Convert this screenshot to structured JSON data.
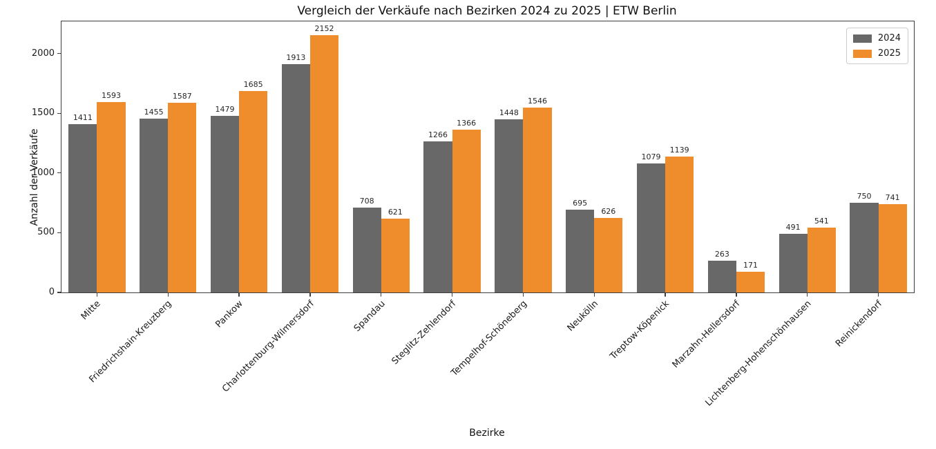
{
  "chart_data": {
    "type": "bar",
    "title": "Vergleich der Verkäufe nach Bezirken 2024 zu 2025 | ETW Berlin",
    "xlabel": "Bezirke",
    "ylabel": "Anzahl der Verkäufe",
    "categories": [
      "Mitte",
      "Friedrichshain-Kreuzberg",
      "Pankow",
      "Charlottenburg-Wilmersdorf",
      "Spandau",
      "Steglitz-Zehlendorf",
      "Tempelhof-Schöneberg",
      "Neukölln",
      "Treptow-Köpenick",
      "Marzahn-Hellersdorf",
      "Lichtenberg-Hohenschönhausen",
      "Reinickendorf"
    ],
    "series": [
      {
        "name": "2024",
        "color": "#686868",
        "values": [
          1411,
          1455,
          1479,
          1913,
          708,
          1266,
          1448,
          695,
          1079,
          263,
          491,
          750
        ]
      },
      {
        "name": "2025",
        "color": "#ef8d2c",
        "values": [
          1593,
          1587,
          1685,
          2152,
          621,
          1366,
          1546,
          626,
          1139,
          171,
          541,
          741
        ]
      }
    ],
    "yticks": [
      0,
      500,
      1000,
      1500,
      2000
    ],
    "ylim": [
      0,
      2270
    ],
    "grid": false,
    "legend_position": "upper right",
    "bar_value_labels_shown": true,
    "xtick_rotation_deg": 45
  }
}
